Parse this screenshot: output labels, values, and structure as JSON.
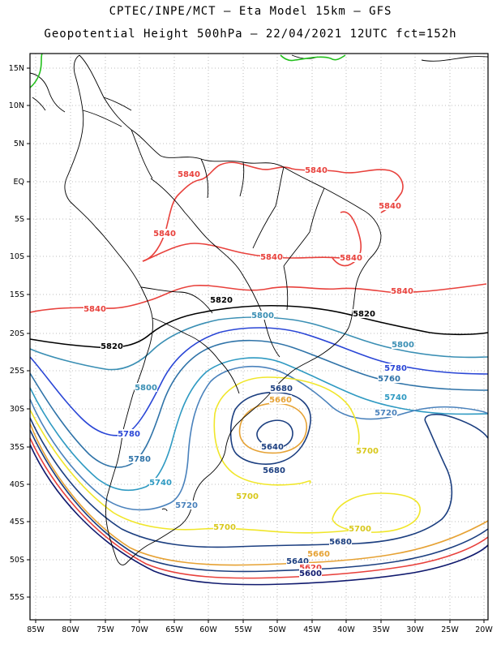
{
  "header": {
    "line1": "CPTEC/INPE/MCT –  Eta Model 15km – GFS",
    "line2": "Geopotential Height 500hPa – 22/04/2021 12UTC fct=152h"
  },
  "map": {
    "lon_labels": [
      "85W",
      "80W",
      "75W",
      "70W",
      "65W",
      "60W",
      "55W",
      "50W",
      "45W",
      "40W",
      "35W",
      "30W",
      "25W",
      "20W"
    ],
    "lat_labels": [
      "15N",
      "10N",
      "5N",
      "EQ",
      "5S",
      "10S",
      "15S",
      "20S",
      "25S",
      "30S",
      "35S",
      "40S",
      "45S",
      "50S",
      "55S"
    ],
    "contour_colors": {
      "5840": "#e8413c",
      "5820": "#000000",
      "5800": "#3a8fb4",
      "5780": "#2a46d6",
      "5760": "#2f73a8",
      "5740": "#2f9ac2",
      "5720": "#4a82bc",
      "5700": "#f0e62a",
      "5680": "#e6a234",
      "5660": "#e8a032",
      "5640": "#1c3f80",
      "5620": "#e8413c",
      "5600": "#101a6e"
    },
    "contour_labels": [
      {
        "text": "5840",
        "color": "#e8413c"
      },
      {
        "text": "5840",
        "color": "#e8413c"
      },
      {
        "text": "5840",
        "color": "#e8413c"
      },
      {
        "text": "5840",
        "color": "#e8413c"
      },
      {
        "text": "5840",
        "color": "#e8413c"
      },
      {
        "text": "5840",
        "color": "#e8413c"
      },
      {
        "text": "5840",
        "color": "#e8413c"
      },
      {
        "text": "5840",
        "color": "#e8413c"
      },
      {
        "text": "5820",
        "color": "#000000"
      },
      {
        "text": "5820",
        "color": "#000000"
      },
      {
        "text": "5820",
        "color": "#000000"
      },
      {
        "text": "5800",
        "color": "#3a8fb4"
      },
      {
        "text": "5800",
        "color": "#3a8fb4"
      },
      {
        "text": "5800",
        "color": "#3a8fb4"
      },
      {
        "text": "5780",
        "color": "#2a46d6"
      },
      {
        "text": "5780",
        "color": "#2a46d6"
      },
      {
        "text": "5780",
        "color": "#2f73a8"
      },
      {
        "text": "5760",
        "color": "#2f73a8"
      },
      {
        "text": "5740",
        "color": "#2f9ac2"
      },
      {
        "text": "5740",
        "color": "#2f9ac2"
      },
      {
        "text": "5720",
        "color": "#4a82bc"
      },
      {
        "text": "5720",
        "color": "#4a82bc"
      },
      {
        "text": "5700",
        "color": "#d8c81c"
      },
      {
        "text": "5700",
        "color": "#d8c81c"
      },
      {
        "text": "5700",
        "color": "#d8c81c"
      },
      {
        "text": "5700",
        "color": "#d8c81c"
      },
      {
        "text": "5680",
        "color": "#1c3f80"
      },
      {
        "text": "5680",
        "color": "#1c3f80"
      },
      {
        "text": "5680",
        "color": "#1c3f80"
      },
      {
        "text": "5660",
        "color": "#e6a234"
      },
      {
        "text": "5660",
        "color": "#e6a234"
      },
      {
        "text": "5640",
        "color": "#1c3f80"
      },
      {
        "text": "5640",
        "color": "#1c3f80"
      },
      {
        "text": "5620",
        "color": "#e8413c"
      },
      {
        "text": "5600",
        "color": "#101a6e"
      }
    ]
  }
}
